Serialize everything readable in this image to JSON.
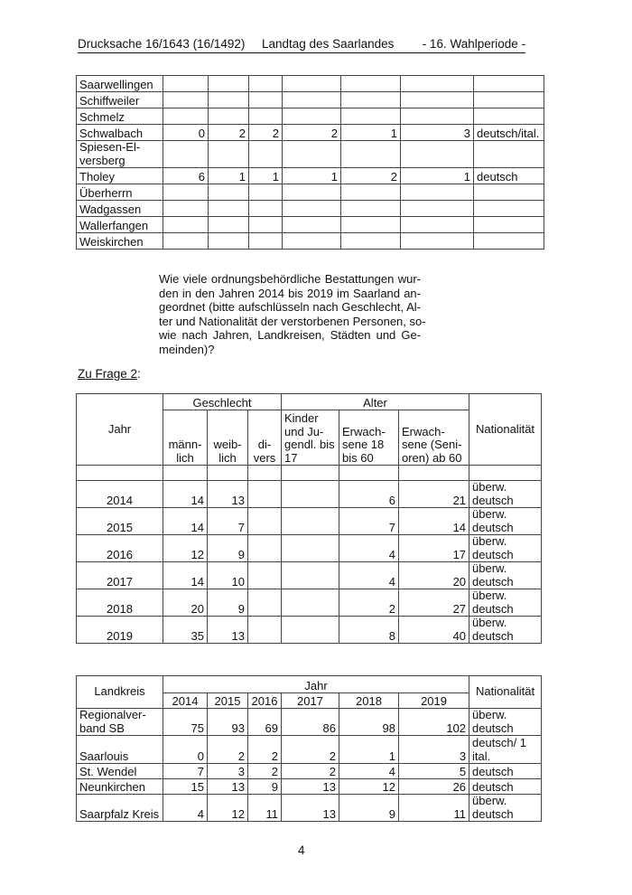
{
  "header": {
    "left": "Drucksache 16/1643 (16/1492)",
    "center": "Landtag des Saarlandes",
    "right": "- 16. Wahlperiode -"
  },
  "table_municipalities": {
    "rows": [
      {
        "name": "Saarwellingen",
        "values": [
          "",
          "",
          "",
          "",
          "",
          ""
        ],
        "nat": ""
      },
      {
        "name": "Schiffweiler",
        "values": [
          "",
          "",
          "",
          "",
          "",
          ""
        ],
        "nat": ""
      },
      {
        "name": "Schmelz",
        "values": [
          "",
          "",
          "",
          "",
          "",
          ""
        ],
        "nat": ""
      },
      {
        "name": "Schwalbach",
        "values": [
          "0",
          "2",
          "2",
          "2",
          "1",
          "3"
        ],
        "nat": "deutsch/ital."
      },
      {
        "name": "Spiesen-El-versberg",
        "values": [
          "",
          "",
          "",
          "",
          "",
          ""
        ],
        "nat": ""
      },
      {
        "name": "Tholey",
        "values": [
          "6",
          "1",
          "1",
          "1",
          "2",
          "1"
        ],
        "nat": "deutsch"
      },
      {
        "name": "Überherrn",
        "values": [
          "",
          "",
          "",
          "",
          "",
          ""
        ],
        "nat": ""
      },
      {
        "name": "Wadgassen",
        "values": [
          "",
          "",
          "",
          "",
          "",
          ""
        ],
        "nat": ""
      },
      {
        "name": "Wallerfangen",
        "values": [
          "",
          "",
          "",
          "",
          "",
          ""
        ],
        "nat": ""
      },
      {
        "name": "Weiskirchen",
        "values": [
          "",
          "",
          "",
          "",
          "",
          ""
        ],
        "nat": ""
      }
    ]
  },
  "question": {
    "lines": [
      "Wie viele ordnungsbehördliche Bestattungen wur-",
      "den in den Jahren 2014 bis 2019 im Saarland an-",
      "geordnet (bitte aufschlüsseln nach Geschlecht, Al-",
      "ter und Nationalität der verstorbenen Personen, so-",
      "wie nach Jahren, Landkreisen, Städten und Ge-",
      "meinden)?"
    ]
  },
  "answer_label": "Zu Frage 2",
  "answer_label_suffix": ":",
  "table_years": {
    "headers": {
      "jahr": "Jahr",
      "geschlecht": "Geschlecht",
      "alter": "Alter",
      "nationalitaet": "Nationalität",
      "maennlich": "männ-lich",
      "weiblich": "weib-lich",
      "divers": "di-vers",
      "kinder": "Kinder und Ju-gendl. bis 17",
      "erwachsene": "Erwach-sene 18 bis 60",
      "senioren": "Erwach-sene (Seni-oren) ab 60"
    },
    "rows": [
      {
        "year": "2014",
        "m": "14",
        "w": "13",
        "d": "",
        "k": "",
        "e": "6",
        "s": "21",
        "nat": "überw. deutsch"
      },
      {
        "year": "2015",
        "m": "14",
        "w": "7",
        "d": "",
        "k": "",
        "e": "7",
        "s": "14",
        "nat": "überw. deutsch"
      },
      {
        "year": "2016",
        "m": "12",
        "w": "9",
        "d": "",
        "k": "",
        "e": "4",
        "s": "17",
        "nat": "überw. deutsch"
      },
      {
        "year": "2017",
        "m": "14",
        "w": "10",
        "d": "",
        "k": "",
        "e": "4",
        "s": "20",
        "nat": "überw. deutsch"
      },
      {
        "year": "2018",
        "m": "20",
        "w": "9",
        "d": "",
        "k": "",
        "e": "2",
        "s": "27",
        "nat": "überw. deutsch"
      },
      {
        "year": "2019",
        "m": "35",
        "w": "13",
        "d": "",
        "k": "",
        "e": "8",
        "s": "40",
        "nat": "überw. deutsch"
      }
    ]
  },
  "table_districts": {
    "headers": {
      "landkreis": "Landkreis",
      "jahr": "Jahr",
      "nationalitaet": "Nationalität",
      "years": [
        "2014",
        "2015",
        "2016",
        "2017",
        "2018",
        "2019"
      ]
    },
    "rows": [
      {
        "name": "Regionalver-band SB",
        "values": [
          "75",
          "93",
          "69",
          "86",
          "98",
          "102"
        ],
        "nat": "überw. deutsch"
      },
      {
        "name": "Saarlouis",
        "values": [
          "0",
          "2",
          "2",
          "2",
          "1",
          "3"
        ],
        "nat": "deutsch/ 1 ital."
      },
      {
        "name": "St. Wendel",
        "values": [
          "7",
          "3",
          "2",
          "2",
          "4",
          "5"
        ],
        "nat": "deutsch"
      },
      {
        "name": "Neunkirchen",
        "values": [
          "15",
          "13",
          "9",
          "13",
          "12",
          "26"
        ],
        "nat": "deutsch"
      },
      {
        "name": "Saarpfalz Kreis",
        "values": [
          "4",
          "12",
          "11",
          "13",
          "9",
          "11"
        ],
        "nat": "überw. deutsch"
      }
    ]
  },
  "page_number": "4"
}
